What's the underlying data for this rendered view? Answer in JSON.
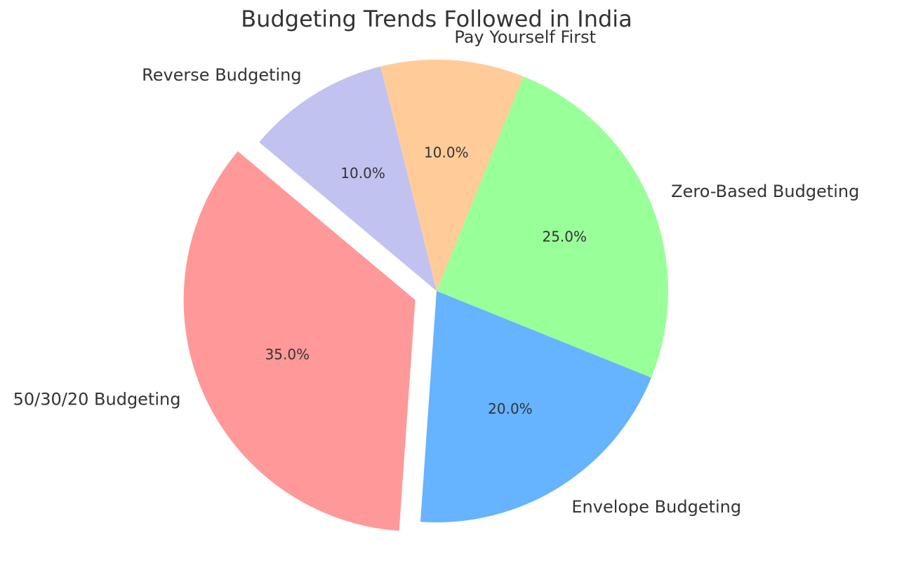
{
  "chart_data": {
    "type": "pie",
    "title": "Budgeting Trends Followed in India",
    "categories": [
      "50/30/20 Budgeting",
      "Envelope Budgeting",
      "Zero-Based Budgeting",
      "Pay Yourself First",
      "Reverse Budgeting"
    ],
    "values": [
      35,
      20,
      25,
      10,
      10
    ],
    "value_labels": [
      "35.0%",
      "20.0%",
      "25.0%",
      "10.0%",
      "10.0%"
    ],
    "exploded": [
      true,
      false,
      false,
      false,
      false
    ],
    "colors": [
      "#ff9999",
      "#66b3ff",
      "#99ff99",
      "#ffcc99",
      "#c2c2f0"
    ],
    "start_angle_deg": 140,
    "direction": "counterclockwise",
    "legend": "none",
    "grid": false
  }
}
